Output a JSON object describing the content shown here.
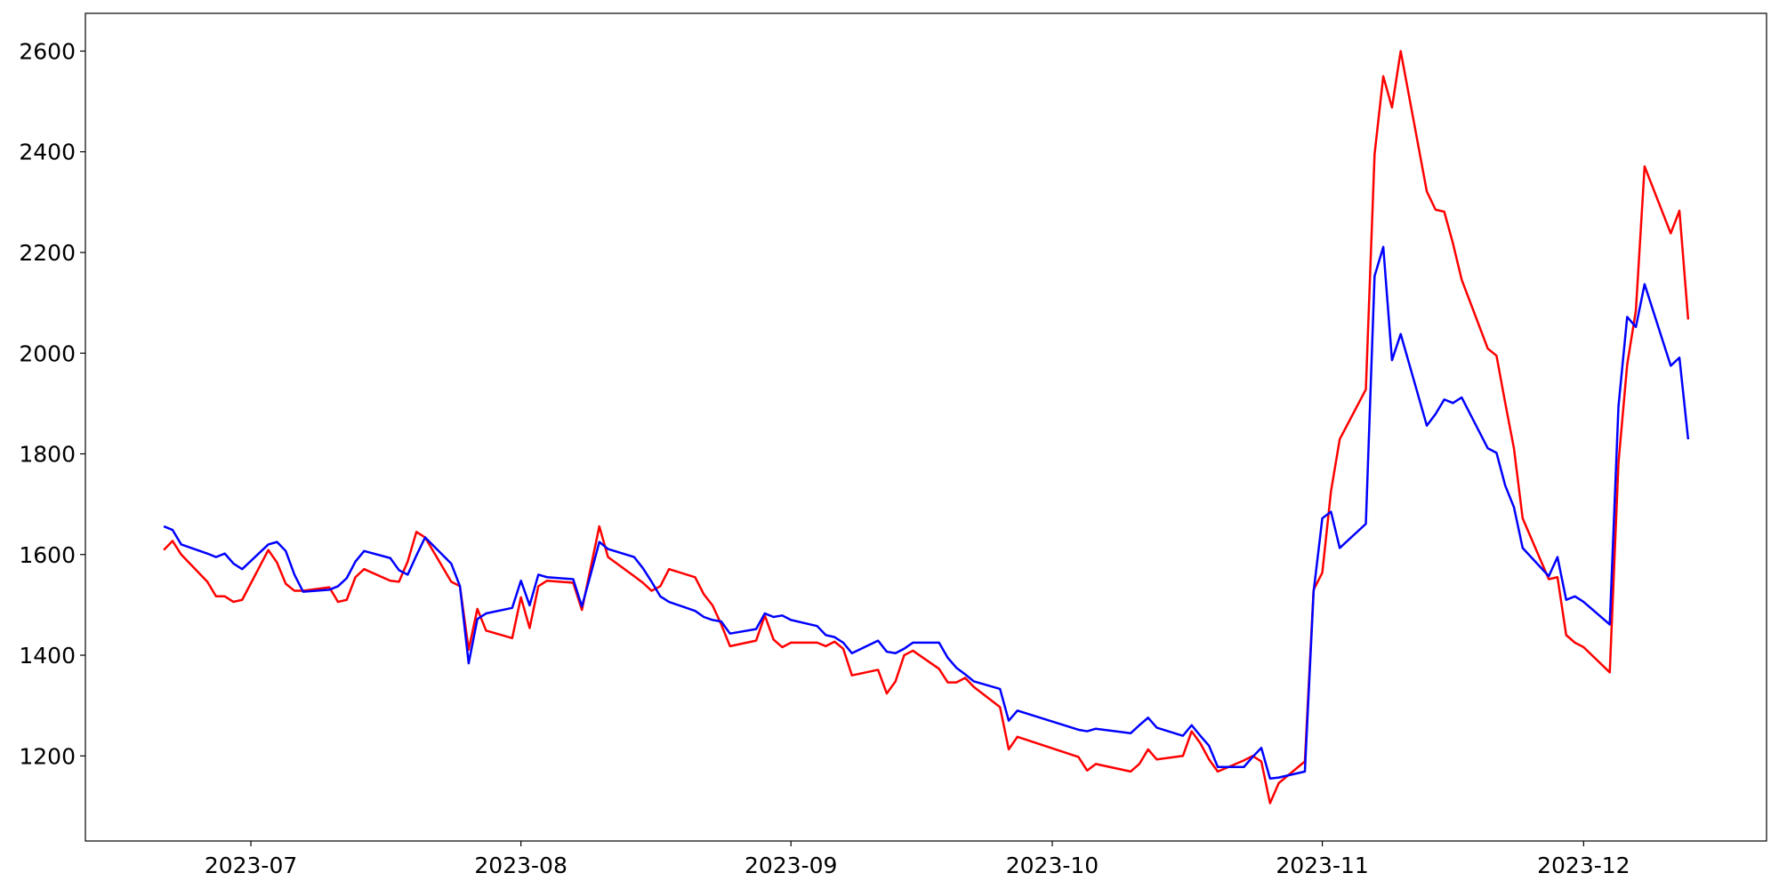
{
  "chart_data": {
    "type": "line",
    "x": [
      "2023-06-21",
      "2023-06-22",
      "2023-06-23",
      "2023-06-26",
      "2023-06-27",
      "2023-06-28",
      "2023-06-29",
      "2023-06-30",
      "2023-07-03",
      "2023-07-04",
      "2023-07-05",
      "2023-07-06",
      "2023-07-07",
      "2023-07-10",
      "2023-07-11",
      "2023-07-12",
      "2023-07-13",
      "2023-07-14",
      "2023-07-17",
      "2023-07-18",
      "2023-07-19",
      "2023-07-20",
      "2023-07-21",
      "2023-07-24",
      "2023-07-25",
      "2023-07-26",
      "2023-07-27",
      "2023-07-28",
      "2023-07-31",
      "2023-08-01",
      "2023-08-02",
      "2023-08-03",
      "2023-08-04",
      "2023-08-07",
      "2023-08-08",
      "2023-08-09",
      "2023-08-10",
      "2023-08-11",
      "2023-08-14",
      "2023-08-15",
      "2023-08-16",
      "2023-08-17",
      "2023-08-18",
      "2023-08-21",
      "2023-08-22",
      "2023-08-23",
      "2023-08-24",
      "2023-08-25",
      "2023-08-28",
      "2023-08-29",
      "2023-08-30",
      "2023-08-31",
      "2023-09-01",
      "2023-09-04",
      "2023-09-05",
      "2023-09-06",
      "2023-09-07",
      "2023-09-08",
      "2023-09-11",
      "2023-09-12",
      "2023-09-13",
      "2023-09-14",
      "2023-09-15",
      "2023-09-18",
      "2023-09-19",
      "2023-09-20",
      "2023-09-21",
      "2023-09-22",
      "2023-09-25",
      "2023-09-26",
      "2023-09-27",
      "2023-10-04",
      "2023-10-05",
      "2023-10-06",
      "2023-10-10",
      "2023-10-11",
      "2023-10-12",
      "2023-10-13",
      "2023-10-16",
      "2023-10-17",
      "2023-10-18",
      "2023-10-19",
      "2023-10-20",
      "2023-10-23",
      "2023-10-24",
      "2023-10-25",
      "2023-10-26",
      "2023-10-27",
      "2023-10-30",
      "2023-10-31",
      "2023-11-01",
      "2023-11-02",
      "2023-11-03",
      "2023-11-06",
      "2023-11-07",
      "2023-11-08",
      "2023-11-09",
      "2023-11-10",
      "2023-11-13",
      "2023-11-14",
      "2023-11-15",
      "2023-11-16",
      "2023-11-17",
      "2023-11-20",
      "2023-11-21",
      "2023-11-22",
      "2023-11-23",
      "2023-11-24",
      "2023-11-27",
      "2023-11-28",
      "2023-11-29",
      "2023-11-30",
      "2023-12-01",
      "2023-12-04",
      "2023-12-05",
      "2023-12-06",
      "2023-12-07",
      "2023-12-08",
      "2023-12-11",
      "2023-12-12",
      "2023-12-13"
    ],
    "series": [
      {
        "color": "red",
        "values": [
          1609,
          1627,
          1600,
          1546,
          1517,
          1517,
          1506,
          1510,
          1609,
          1584,
          1542,
          1528,
          1528,
          1535,
          1506,
          1510,
          1555,
          1571,
          1548,
          1546,
          1586,
          1645,
          1634,
          1546,
          1537,
          1411,
          1492,
          1449,
          1434,
          1515,
          1454,
          1537,
          1548,
          1544,
          1490,
          1573,
          1656,
          1595,
          1557,
          1544,
          1528,
          1537,
          1571,
          1555,
          1521,
          1499,
          1461,
          1418,
          1429,
          1479,
          1431,
          1416,
          1425,
          1425,
          1418,
          1427,
          1413,
          1360,
          1371,
          1324,
          1348,
          1400,
          1409,
          1373,
          1346,
          1346,
          1355,
          1337,
          1297,
          1213,
          1238,
          1198,
          1171,
          1184,
          1169,
          1184,
          1213,
          1193,
          1200,
          1249,
          1225,
          1193,
          1169,
          1191,
          1200,
          1189,
          1106,
          1146,
          1189,
          1530,
          1564,
          1726,
          1829,
          1928,
          2395,
          2550,
          2488,
          2600,
          2321,
          2285,
          2281,
          2218,
          2146,
          2009,
          1995,
          1901,
          1811,
          1672,
          1551,
          1555,
          1440,
          1425,
          1416,
          1366,
          1782,
          1977,
          2085,
          2371,
          2238,
          2283,
          2067
        ]
      },
      {
        "color": "blue",
        "values": [
          1656,
          1649,
          1620,
          1602,
          1595,
          1602,
          1582,
          1571,
          1620,
          1625,
          1607,
          1560,
          1526,
          1530,
          1537,
          1553,
          1586,
          1607,
          1593,
          1569,
          1560,
          1598,
          1634,
          1582,
          1537,
          1384,
          1472,
          1483,
          1494,
          1548,
          1499,
          1560,
          1555,
          1551,
          1497,
          1560,
          1625,
          1611,
          1595,
          1573,
          1546,
          1517,
          1506,
          1488,
          1476,
          1470,
          1467,
          1443,
          1452,
          1483,
          1476,
          1479,
          1470,
          1458,
          1440,
          1436,
          1425,
          1404,
          1429,
          1407,
          1404,
          1413,
          1425,
          1425,
          1395,
          1375,
          1362,
          1348,
          1333,
          1270,
          1290,
          1252,
          1249,
          1254,
          1245,
          1261,
          1276,
          1256,
          1240,
          1261,
          1240,
          1220,
          1178,
          1178,
          1198,
          1216,
          1155,
          1157,
          1169,
          1526,
          1672,
          1685,
          1613,
          1661,
          2153,
          2211,
          1986,
          2038,
          1856,
          1879,
          1908,
          1901,
          1912,
          1811,
          1802,
          1737,
          1694,
          1613,
          1557,
          1595,
          1510,
          1517,
          1506,
          1461,
          1894,
          2072,
          2052,
          2137,
          1975,
          1991,
          1829
        ]
      }
    ],
    "xlim": [
      "2023-06-12",
      "2023-12-22"
    ],
    "xticks": [
      {
        "value": "2023-07-01",
        "label": "2023-07"
      },
      {
        "value": "2023-08-01",
        "label": "2023-08"
      },
      {
        "value": "2023-09-01",
        "label": "2023-09"
      },
      {
        "value": "2023-10-01",
        "label": "2023-10"
      },
      {
        "value": "2023-11-01",
        "label": "2023-11"
      },
      {
        "value": "2023-12-01",
        "label": "2023-12"
      }
    ],
    "ylim": [
      1031,
      2675
    ],
    "yticks": [
      1200,
      1400,
      1600,
      1800,
      2000,
      2200,
      2400,
      2600
    ],
    "grid": false
  }
}
